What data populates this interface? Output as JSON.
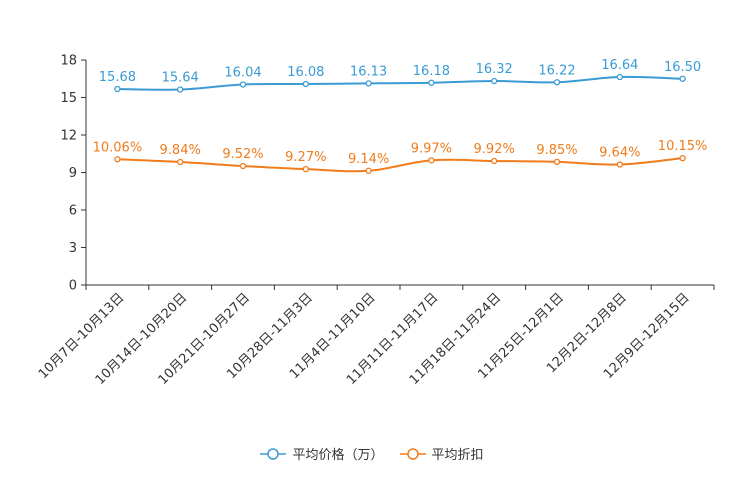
{
  "chart_data": {
    "type": "line",
    "title": "",
    "xlabel": "",
    "ylabel": "",
    "ylim": [
      0,
      18
    ],
    "yticks": [
      0,
      3,
      6,
      9,
      12,
      15,
      18
    ],
    "grid": false,
    "legend_position": "bottom-center",
    "categories": [
      "10月7日-10月13日",
      "10月14日-10月20日",
      "10月21日-10月27日",
      "10月28日-11月3日",
      "11月4日-11月10日",
      "11月11日-11月17日",
      "11月18日-11月24日",
      "11月25日-12月1日",
      "12月2日-12月8日",
      "12月9日-12月15日"
    ],
    "series": [
      {
        "name": "平均价格（万）",
        "color": "#3a9bd5",
        "values": [
          15.68,
          15.64,
          16.04,
          16.08,
          16.13,
          16.18,
          16.32,
          16.22,
          16.64,
          16.5
        ],
        "labels": [
          "15.68",
          "15.64",
          "16.04",
          "16.08",
          "16.13",
          "16.18",
          "16.32",
          "16.22",
          "16.64",
          "16.50"
        ]
      },
      {
        "name": "平均折扣",
        "color": "#f07c1b",
        "values": [
          10.06,
          9.84,
          9.52,
          9.27,
          9.14,
          9.97,
          9.92,
          9.85,
          9.64,
          10.15
        ],
        "labels": [
          "10.06%",
          "9.84%",
          "9.52%",
          "9.27%",
          "9.14%",
          "9.97%",
          "9.92%",
          "9.85%",
          "9.64%",
          "10.15%"
        ]
      }
    ]
  }
}
